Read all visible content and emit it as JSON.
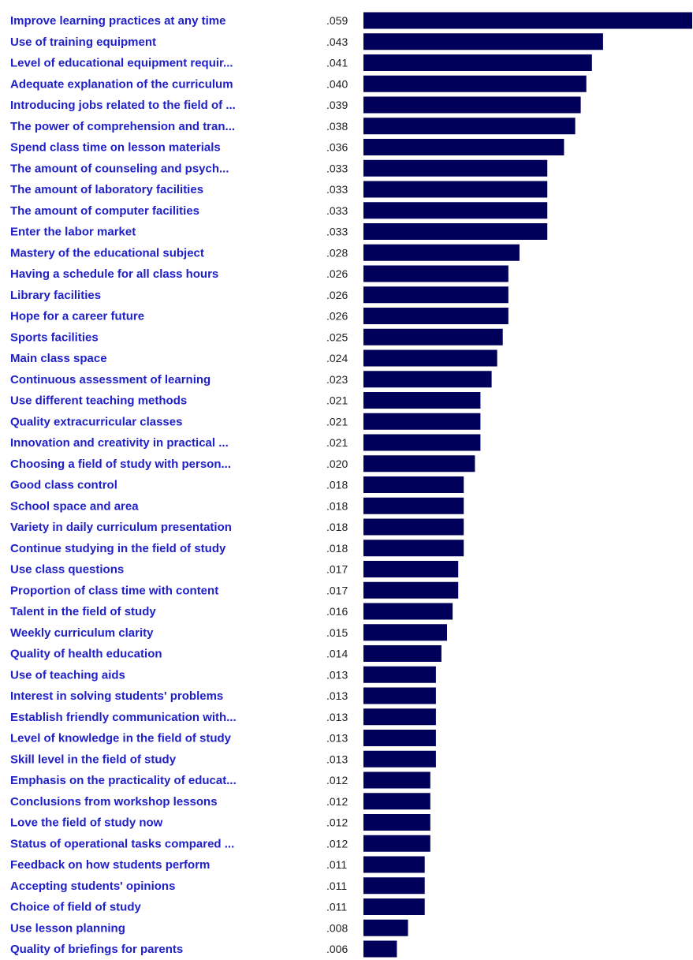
{
  "chart_data": {
    "type": "bar",
    "orientation": "horizontal",
    "categories": [
      "Improve learning practices at any time",
      "Use of training equipment",
      "Level of educational equipment requir...",
      "Adequate explanation of the curriculum",
      "Introducing jobs related to the field of ...",
      "The power of comprehension and tran...",
      "Spend class time on lesson materials",
      "The amount of counseling and psych...",
      "The amount of laboratory facilities",
      "The amount of computer facilities",
      "Enter the labor market",
      "Mastery of the educational subject",
      "Having a schedule for all class hours",
      "Library facilities",
      "Hope for a career future",
      "Sports facilities",
      "Main class space",
      "Continuous assessment of learning",
      "Use different teaching methods",
      "Quality extracurricular classes",
      "Innovation and creativity in practical ...",
      "Choosing a field of study with person...",
      "Good class control",
      "School space and area",
      "Variety in daily curriculum presentation",
      "Continue studying in the field of study",
      "Use class questions",
      "Proportion of class time with content",
      "Talent in the field of study",
      "Weekly curriculum clarity",
      "Quality of health education",
      "Use of teaching aids",
      "Interest in solving students' problems",
      "Establish friendly communication with...",
      "Level of knowledge in the field of study",
      "Skill level in the field of study",
      "Emphasis on the practicality of educat...",
      "Conclusions from workshop lessons",
      "Love the field of study now",
      "Status of operational tasks compared ...",
      "Feedback on how students perform",
      "Accepting students' opinions",
      "Choice of field of study",
      "Use lesson planning",
      "Quality of briefings for parents"
    ],
    "values": [
      0.059,
      0.043,
      0.041,
      0.04,
      0.039,
      0.038,
      0.036,
      0.033,
      0.033,
      0.033,
      0.033,
      0.028,
      0.026,
      0.026,
      0.026,
      0.025,
      0.024,
      0.023,
      0.021,
      0.021,
      0.021,
      0.02,
      0.018,
      0.018,
      0.018,
      0.018,
      0.017,
      0.017,
      0.016,
      0.015,
      0.014,
      0.013,
      0.013,
      0.013,
      0.013,
      0.013,
      0.012,
      0.012,
      0.012,
      0.012,
      0.011,
      0.011,
      0.011,
      0.008,
      0.006
    ],
    "value_labels": [
      ".059",
      ".043",
      ".041",
      ".040",
      ".039",
      ".038",
      ".036",
      ".033",
      ".033",
      ".033",
      ".033",
      ".028",
      ".026",
      ".026",
      ".026",
      ".025",
      ".024",
      ".023",
      ".021",
      ".021",
      ".021",
      ".020",
      ".018",
      ".018",
      ".018",
      ".018",
      ".017",
      ".017",
      ".016",
      ".015",
      ".014",
      ".013",
      ".013",
      ".013",
      ".013",
      ".013",
      ".012",
      ".012",
      ".012",
      ".012",
      ".011",
      ".011",
      ".011",
      ".008",
      ".006"
    ],
    "xlim": [
      0,
      0.059
    ],
    "grid": false,
    "bar_color": "#00005a",
    "label_color": "#2020c8",
    "value_color": "#222222"
  }
}
